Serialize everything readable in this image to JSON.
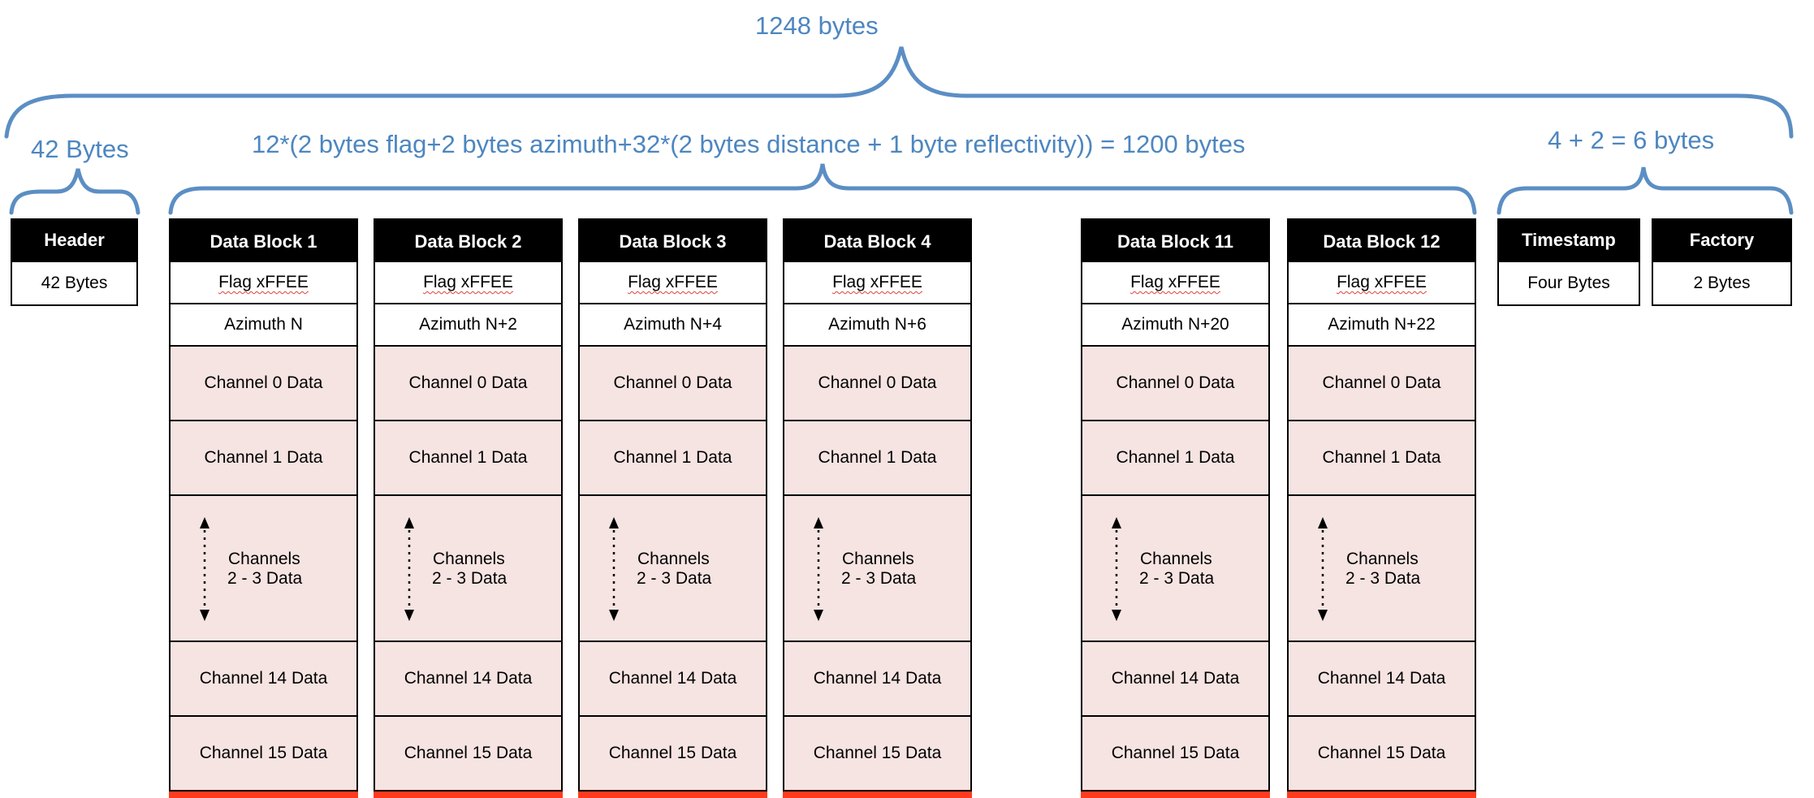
{
  "braces": {
    "total": "1248 bytes",
    "header": "42 Bytes",
    "data": "12*(2 bytes flag+2 bytes azimuth+32*(2 bytes distance + 1 byte reflectivity)) = 1200 bytes",
    "tail": "4 + 2 = 6  bytes"
  },
  "header": {
    "title": "Header",
    "value": "42 Bytes"
  },
  "timestamp": {
    "title": "Timestamp",
    "value": "Four Bytes"
  },
  "factory": {
    "title": "Factory",
    "value": "2 Bytes"
  },
  "blocks": [
    {
      "title": "Data Block 1",
      "flag": "Flag xFFEE",
      "azimuth": "Azimuth N",
      "ch0": "Channel 0 Data",
      "ch1": "Channel 1 Data",
      "mid1": "Channels",
      "mid2": "2 - 3 Data",
      "ch14": "Channel 14 Data",
      "ch15": "Channel 15 Data"
    },
    {
      "title": "Data Block 2",
      "flag": "Flag xFFEE",
      "azimuth": "Azimuth N+2",
      "ch0": "Channel 0 Data",
      "ch1": "Channel 1 Data",
      "mid1": "Channels",
      "mid2": "2 - 3 Data",
      "ch14": "Channel 14 Data",
      "ch15": "Channel 15 Data"
    },
    {
      "title": "Data Block 3",
      "flag": "Flag xFFEE",
      "azimuth": "Azimuth N+4",
      "ch0": "Channel 0 Data",
      "ch1": "Channel 1 Data",
      "mid1": "Channels",
      "mid2": "2 - 3 Data",
      "ch14": "Channel 14 Data",
      "ch15": "Channel 15 Data"
    },
    {
      "title": "Data Block 4",
      "flag": "Flag xFFEE",
      "azimuth": "Azimuth N+6",
      "ch0": "Channel 0 Data",
      "ch1": "Channel 1 Data",
      "mid1": "Channels",
      "mid2": "2 - 3 Data",
      "ch14": "Channel 14 Data",
      "ch15": "Channel 15 Data"
    },
    {
      "title": "Data Block 11",
      "flag": "Flag xFFEE",
      "azimuth": "Azimuth N+20",
      "ch0": "Channel 0 Data",
      "ch1": "Channel 1 Data",
      "mid1": "Channels",
      "mid2": "2 - 3 Data",
      "ch14": "Channel 14 Data",
      "ch15": "Channel 15 Data"
    },
    {
      "title": "Data Block 12",
      "flag": "Flag xFFEE",
      "azimuth": "Azimuth N+22",
      "ch0": "Channel 0 Data",
      "ch1": "Channel 1 Data",
      "mid1": "Channels",
      "mid2": "2 - 3 Data",
      "ch14": "Channel 14 Data",
      "ch15": "Channel 15 Data"
    }
  ],
  "colors": {
    "brace": "#5b8ec4",
    "cell_fill": "#f6e4e2",
    "header_fill": "#000000",
    "bottom_bar": "#ff3b1f"
  }
}
